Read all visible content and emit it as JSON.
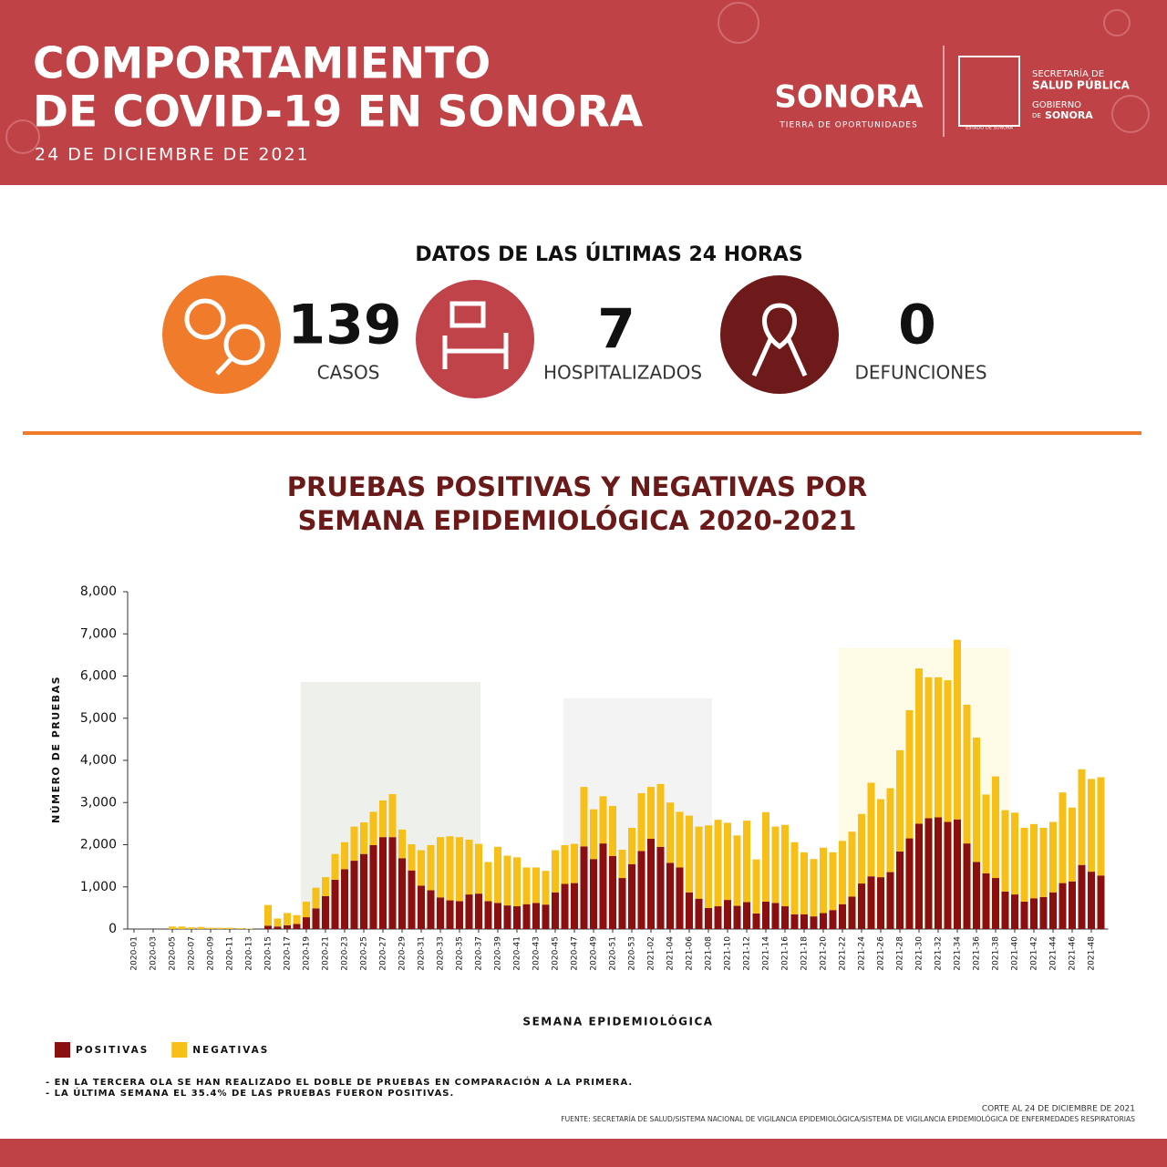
{
  "header": {
    "title_line1": "COMPORTAMIENTO",
    "title_line2": "DE COVID-19 EN SONORA",
    "date": "24 DE DICIEMBRE DE 2021"
  },
  "logos": {
    "brand": "SONORA",
    "slogan": "TIERRA DE OPORTUNIDADES",
    "dept1": "SECRETARÍA DE",
    "dept2": "SALUD PÚBLICA",
    "gov1": "GOBIERNO",
    "gov2_prefix": "DE",
    "gov2": "SONORA",
    "shield": "ESTADO DE SONORA"
  },
  "stats": {
    "title": "DATOS DE LAS ÚLTIMAS 24 HORAS",
    "items": [
      {
        "value": 139,
        "label": "CASOS"
      },
      {
        "value": 7,
        "label": "HOSPITALIZADOS"
      },
      {
        "value": 0,
        "label": "DEFUNCIONES"
      }
    ]
  },
  "chart_data": {
    "type": "stacked-bar",
    "title_line1": "PRUEBAS POSITIVAS Y NEGATIVAS POR",
    "title_line2": "SEMANA EPIDEMIOLÓGICA 2020-2021",
    "y_label": "NÚMERO DE PRUEBAS",
    "x_label": "SEMANA EPIDEMIOLÓGICA",
    "grid": false,
    "ylim": [
      0,
      8000
    ],
    "yticks": [
      0,
      {
        "value": 1000,
        "label": "1,000"
      },
      {
        "value": 2000,
        "label": "2,000"
      },
      {
        "value": 3000,
        "label": "3,000"
      },
      {
        "value": 4000,
        "label": "4,000"
      },
      {
        "value": 5000,
        "label": "5,000"
      },
      {
        "value": 6000,
        "label": "6,000"
      },
      {
        "value": 7000,
        "label": "7,000"
      },
      {
        "value": 8000,
        "label": "8,000"
      }
    ],
    "categories": [
      "2020-01",
      null,
      "2020-03",
      null,
      "2020-05",
      null,
      "2020-07",
      null,
      "2020-09",
      null,
      "2020-11",
      null,
      "2020-13",
      null,
      "2020-15",
      null,
      "2020-17",
      null,
      "2020-19",
      null,
      "2020-21",
      null,
      "2020-23",
      null,
      "2020-25",
      null,
      "2020-27",
      null,
      "2020-29",
      null,
      "2020-31",
      null,
      "2020-33",
      null,
      "2020-35",
      null,
      "2020-37",
      null,
      "2020-39",
      null,
      "2020-41",
      null,
      "2020-43",
      null,
      "2020-45",
      null,
      "2020-47",
      null,
      "2020-49",
      null,
      "2020-51",
      null,
      "2020-53",
      null,
      "2021-02",
      null,
      "2021-04",
      null,
      "2021-06",
      null,
      "2021-08",
      null,
      "2021-10",
      null,
      "2021-12",
      null,
      "2021-14",
      null,
      "2021-16",
      null,
      "2021-18",
      null,
      "2021-20",
      null,
      "2021-22",
      null,
      "2021-24",
      null,
      "2021-26",
      null,
      "2021-28",
      null,
      "2021-30",
      null,
      "2021-32",
      null,
      "2021-34",
      null,
      "2021-36",
      null,
      "2021-38",
      null,
      "2021-40",
      null,
      "2021-42",
      null,
      "2021-44",
      null,
      "2021-46",
      null,
      "2021-48",
      null
    ],
    "series": [
      {
        "name": "POSITIVAS",
        "color": "#8b0f0f",
        "values": [
          0,
          0,
          0,
          0,
          0,
          0,
          0,
          0,
          0,
          0,
          0,
          0,
          0,
          0,
          80,
          60,
          90,
          120,
          280,
          490,
          780,
          1170,
          1420,
          1620,
          1780,
          1990,
          2180,
          2180,
          1680,
          1390,
          1030,
          920,
          750,
          680,
          660,
          820,
          840,
          660,
          620,
          560,
          540,
          590,
          620,
          580,
          870,
          1070,
          1090,
          1960,
          1660,
          2030,
          1730,
          1210,
          1540,
          1850,
          2140,
          1950,
          1570,
          1460,
          870,
          720,
          500,
          540,
          690,
          550,
          640,
          370,
          650,
          620,
          540,
          350,
          350,
          300,
          380,
          450,
          590,
          770,
          1080,
          1250,
          1230,
          1350,
          1840,
          2150,
          2500,
          2630,
          2650,
          2540,
          2600,
          2030,
          1590,
          1320,
          1210,
          890,
          820,
          650,
          730,
          760,
          870,
          1090,
          1130,
          1520,
          1360,
          1270
        ]
      },
      {
        "name": "NEGATIVAS",
        "color": "#f6c018",
        "values": [
          0,
          0,
          0,
          0,
          60,
          60,
          40,
          50,
          30,
          30,
          30,
          20,
          10,
          0,
          490,
          190,
          290,
          210,
          370,
          490,
          450,
          610,
          640,
          810,
          750,
          790,
          870,
          1020,
          680,
          620,
          840,
          1070,
          1430,
          1520,
          1520,
          1300,
          1180,
          930,
          1330,
          1180,
          1160,
          870,
          840,
          800,
          1000,
          920,
          930,
          1410,
          1180,
          1120,
          1190,
          670,
          860,
          1370,
          1230,
          1490,
          1430,
          1320,
          1820,
          1710,
          1960,
          2050,
          1830,
          1670,
          1930,
          1280,
          2120,
          1810,
          1930,
          1710,
          1470,
          1360,
          1550,
          1370,
          1500,
          1540,
          1650,
          2220,
          1850,
          1990,
          2400,
          3040,
          3680,
          3340,
          3320,
          3360,
          4260,
          3290,
          2950,
          1870,
          2410,
          1930,
          1940,
          1750,
          1760,
          1640,
          1670,
          2150,
          1750,
          2270,
          2200,
          2330
        ]
      }
    ]
  },
  "notes": [
    "- EN LA TERCERA OLA SE HAN REALIZADO EL DOBLE DE PRUEBAS EN COMPARACIÓN A LA PRIMERA.",
    "- LA ÚLTIMA SEMANA EL 35.4% DE LAS PRUEBAS FUERON POSITIVAS."
  ],
  "footer": {
    "cutoff": "CORTE AL 24  DE DICIEMBRE DE 2021",
    "source": "FUENTE: SECRETARÍA DE SALUD/SISTEMA NACIONAL DE VIGILANCIA EPIDEMIOLÓGICA/SISTEMA DE VIGILANCIA EPIDEMIOLÓGICA DE ENFERMEDADES RESPIRATORIAS"
  }
}
